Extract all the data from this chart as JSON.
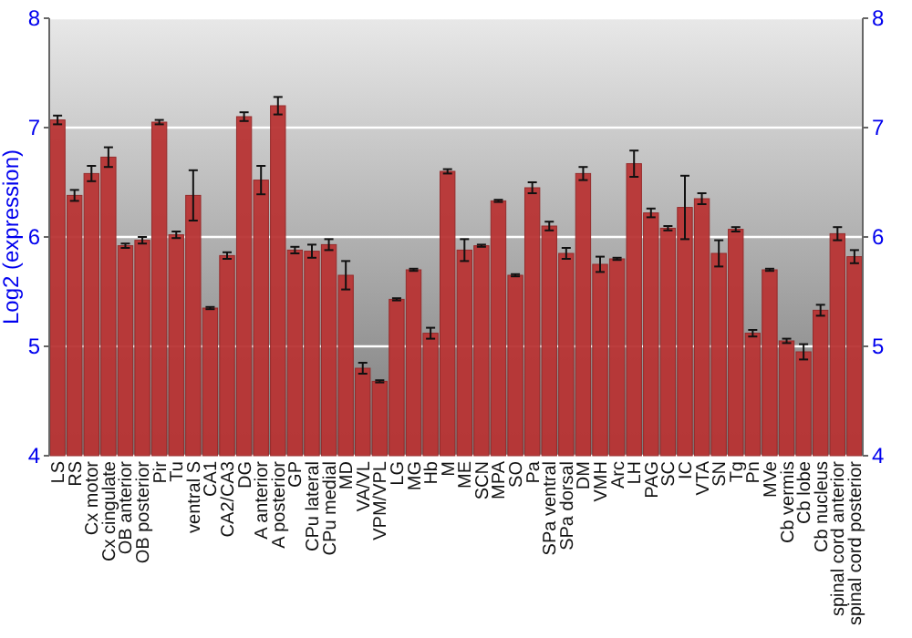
{
  "chart_data": {
    "type": "bar",
    "ylabel": "Log2 (expression)",
    "categories": [
      "LS",
      "RS",
      "Cx motor",
      "Cx cingulate",
      "OB anterior",
      "OB posterior",
      "Pir",
      "Tu",
      "ventral S",
      "CA1",
      "CA2/CA3",
      "DG",
      "A anterior",
      "A posterior",
      "GP",
      "CPu lateral",
      "CPu medial",
      "MD",
      "VA/VL",
      "VPM/VPL",
      "LG",
      "MG",
      "Hb",
      "M",
      "ME",
      "SCN",
      "MPA",
      "SO",
      "Pa",
      "SPa ventral",
      "SPa dorsal",
      "DM",
      "VMH",
      "Arc",
      "LH",
      "PAG",
      "SC",
      "IC",
      "VTA",
      "SN",
      "Tg",
      "Pn",
      "MVe",
      "Cb vermis",
      "Cb lobe",
      "Cb nucleus",
      "spinal cord anterior",
      "spinal cord posterior"
    ],
    "values": [
      7.07,
      6.38,
      6.58,
      6.73,
      5.92,
      5.97,
      7.05,
      6.02,
      6.38,
      5.35,
      5.83,
      7.1,
      6.52,
      7.2,
      5.88,
      5.87,
      5.93,
      5.65,
      4.8,
      4.68,
      5.43,
      5.7,
      5.12,
      6.6,
      5.88,
      5.92,
      6.33,
      5.65,
      6.45,
      6.1,
      5.85,
      6.58,
      5.75,
      5.8,
      6.67,
      6.22,
      6.08,
      6.27,
      6.35,
      5.85,
      6.07,
      5.12,
      5.7,
      5.05,
      4.95,
      5.33,
      6.03,
      5.82
    ],
    "errors": [
      0.04,
      0.05,
      0.07,
      0.09,
      0.02,
      0.03,
      0.02,
      0.03,
      0.23,
      0.01,
      0.03,
      0.04,
      0.13,
      0.08,
      0.03,
      0.06,
      0.05,
      0.13,
      0.05,
      0.01,
      0.01,
      0.01,
      0.05,
      0.02,
      0.1,
      0.01,
      0.01,
      0.01,
      0.05,
      0.04,
      0.05,
      0.06,
      0.07,
      0.01,
      0.12,
      0.04,
      0.02,
      0.29,
      0.05,
      0.12,
      0.02,
      0.03,
      0.01,
      0.02,
      0.07,
      0.05,
      0.06,
      0.06
    ],
    "color": "#b83434",
    "ylim": [
      4,
      8
    ],
    "yticks": [
      4,
      5,
      6,
      7,
      8
    ],
    "y2lim": [
      4,
      8
    ],
    "y2ticks": [
      4,
      5,
      6,
      7,
      8
    ],
    "grid": "y"
  }
}
